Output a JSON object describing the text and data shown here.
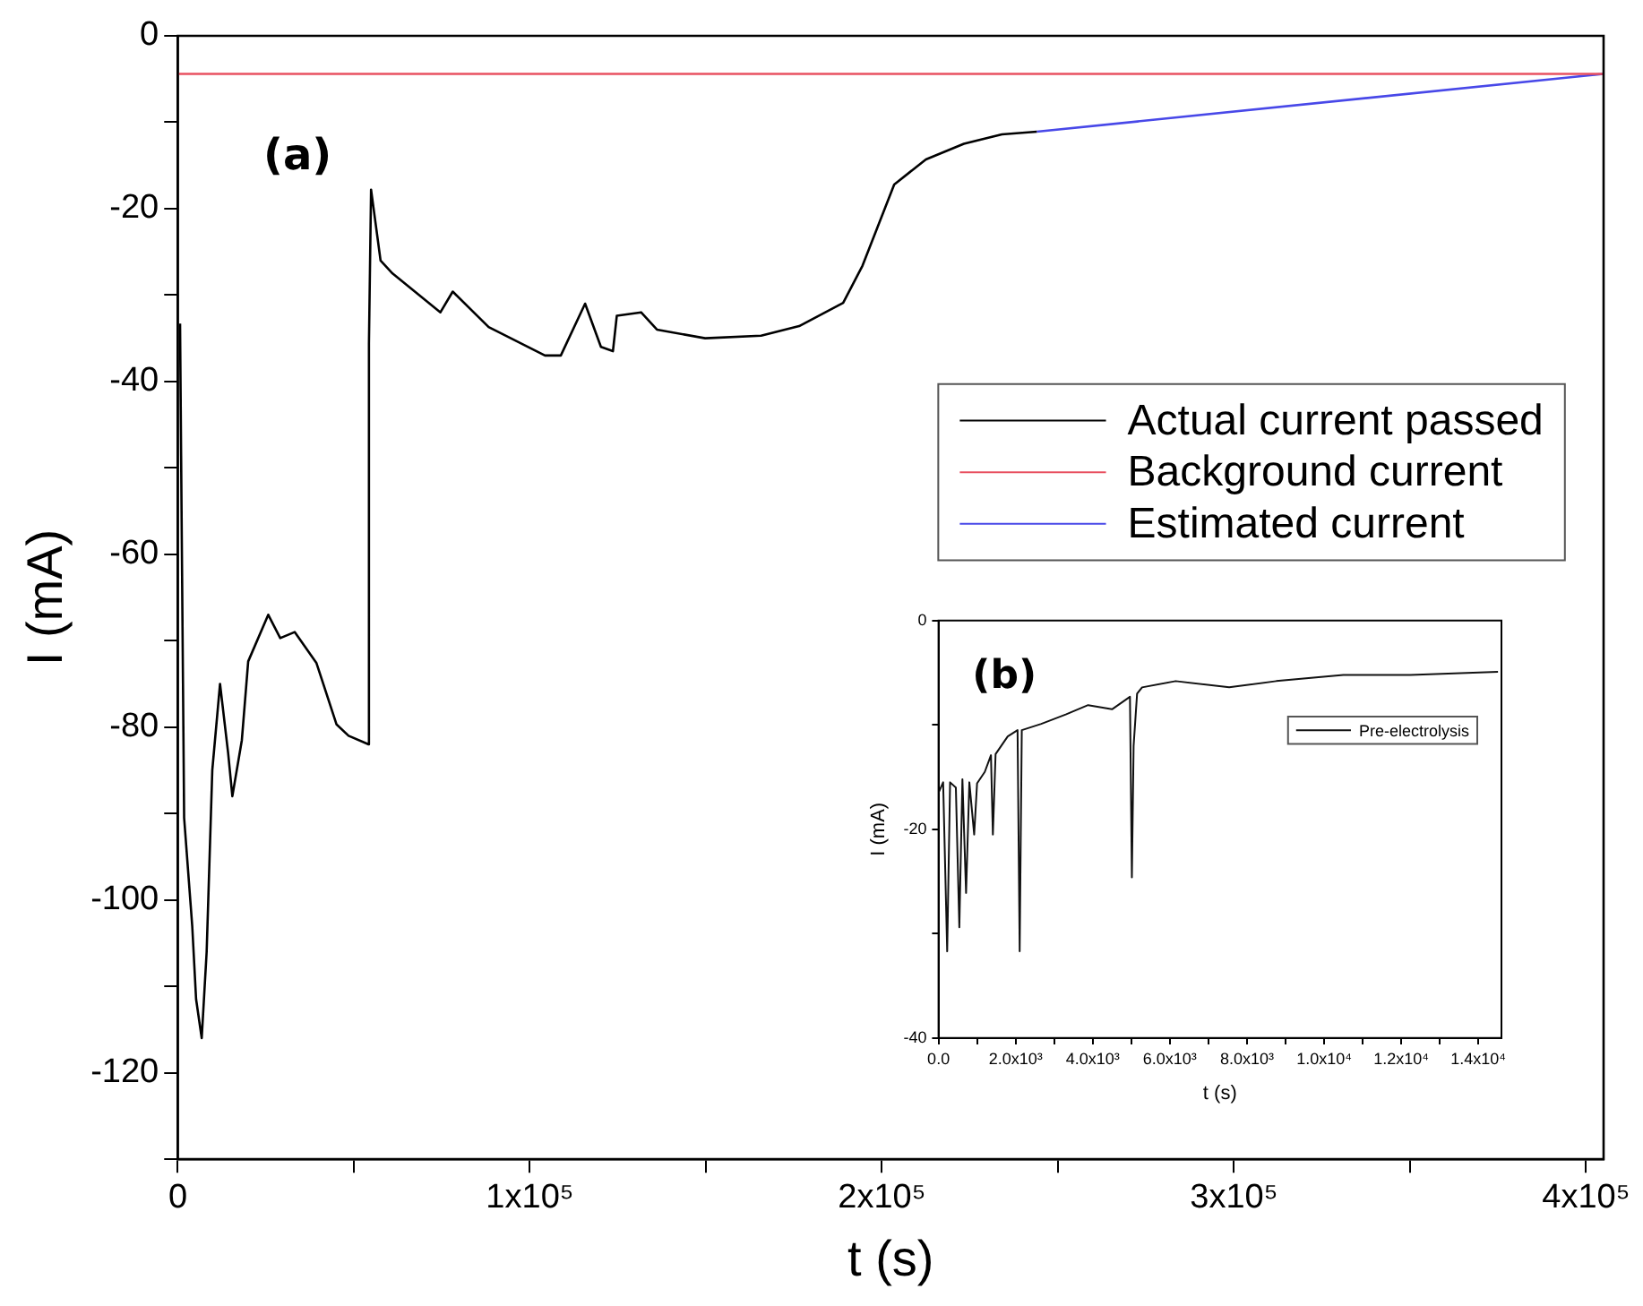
{
  "chart_data": [
    {
      "type": "line",
      "xlabel": "t (s)",
      "ylabel": "I (mA)",
      "annotations": [
        "(a)"
      ],
      "xlim": [
        0,
        405000
      ],
      "xticks": [
        0,
        {
          "value": 50000,
          "label": null
        },
        {
          "value": 100000,
          "label": "1x10⁵"
        },
        {
          "value": 150000,
          "label": null
        },
        {
          "value": 200000,
          "label": "2x10⁵"
        },
        {
          "value": 250000,
          "label": null
        },
        {
          "value": 300000,
          "label": "3x10⁵"
        },
        {
          "value": 350000,
          "label": null
        },
        {
          "value": 400000,
          "label": "4x10⁵"
        }
      ],
      "ylim": [
        -130,
        0
      ],
      "yticks": [
        0,
        {
          "value": -10,
          "label": null
        },
        -20,
        {
          "value": -30,
          "label": null
        },
        -40,
        {
          "value": -50,
          "label": null
        },
        -60,
        {
          "value": -70,
          "label": null
        },
        -80,
        {
          "value": -90,
          "label": null
        },
        -100,
        {
          "value": -110,
          "label": null
        },
        -120,
        {
          "value": -130,
          "label": null
        }
      ],
      "grid": false,
      "legend": "right",
      "marker": "none",
      "line_style": "solid",
      "series": [
        {
          "name": "Actual current passed",
          "color": "#000000",
          "x": [
            650,
            1130,
            1800,
            4100,
            5200,
            6800,
            8200,
            9800,
            12000,
            14300,
            15500,
            18200,
            20000,
            25700,
            29100,
            33200,
            39400,
            45100,
            48500,
            54200,
            54300,
            54900,
            57600,
            61000,
            74600,
            78100,
            88300,
            104300,
            108800,
            115700,
            120200,
            123600,
            124700,
            131600,
            136100,
            149800,
            165700,
            176500,
            189000,
            194500,
            203500,
            212500,
            223300,
            234100,
            244000
          ],
          "values": [
            -33.3,
            -57.9,
            -90.5,
            -103,
            -111.5,
            -116,
            -106,
            -85,
            -75,
            -83,
            -88,
            -81.5,
            -72.4,
            -67,
            -69.7,
            -69,
            -72.6,
            -79.7,
            -81,
            -82,
            -35.6,
            -17.8,
            -26,
            -27.5,
            -32,
            -29.6,
            -33.7,
            -37,
            -37,
            -31,
            -36,
            -36.5,
            -32.4,
            -32,
            -34,
            -35,
            -34.7,
            -33.6,
            -30.9,
            -26.6,
            -17.2,
            -14.3,
            -12.5,
            -11.4,
            -11.1
          ]
        },
        {
          "name": "Background current",
          "color": "#e85060",
          "x": [
            0,
            405000
          ],
          "values": [
            -4.4,
            -4.4
          ]
        },
        {
          "name": "Estimated current",
          "color": "#4848e8",
          "x": [
            244000,
            405000
          ],
          "values": [
            -11.1,
            -4.4
          ]
        }
      ]
    },
    {
      "type": "line",
      "xlabel": "t (s)",
      "ylabel": "I (mA)",
      "annotations": [
        "(b)"
      ],
      "xlim": [
        0,
        14600
      ],
      "xticks": [
        {
          "value": 0,
          "label": "0.0"
        },
        {
          "value": 1000,
          "label": null
        },
        {
          "value": 2000,
          "label": "2.0x10³"
        },
        {
          "value": 3000,
          "label": null
        },
        {
          "value": 4000,
          "label": "4.0x10³"
        },
        {
          "value": 5000,
          "label": null
        },
        {
          "value": 6000,
          "label": "6.0x10³"
        },
        {
          "value": 7000,
          "label": null
        },
        {
          "value": 8000,
          "label": "8.0x10³"
        },
        {
          "value": 9000,
          "label": null
        },
        {
          "value": 10000,
          "label": "1.0x10⁴"
        },
        {
          "value": 11000,
          "label": null
        },
        {
          "value": 12000,
          "label": "1.2x10⁴"
        },
        {
          "value": 13000,
          "label": null
        },
        {
          "value": 14000,
          "label": "1.4x10⁴"
        }
      ],
      "ylim": [
        -40,
        0
      ],
      "yticks": [
        0,
        {
          "value": -10,
          "label": null
        },
        -20,
        {
          "value": -30,
          "label": null
        },
        -40
      ],
      "grid": false,
      "legend": "top right",
      "marker": "none",
      "line_style": "solid",
      "series": [
        {
          "name": "Pre-electrolysis",
          "color": "#111111",
          "x": [
            0,
            120,
            225,
            300,
            450,
            540,
            620,
            715,
            800,
            925,
            1000,
            1200,
            1360,
            1410,
            1480,
            1795,
            2050,
            2105,
            2160,
            2665,
            3300,
            3880,
            4500,
            4965,
            5015,
            5060,
            5150,
            5280,
            6150,
            7540,
            8760,
            10500,
            12240,
            14510
          ],
          "values": [
            -16.5,
            -15.5,
            -31.7,
            -15.5,
            -16,
            -29.4,
            -15.2,
            -26.1,
            -15.5,
            -20.5,
            -15.6,
            -14.5,
            -12.9,
            -20.5,
            -12.8,
            -11.1,
            -10.5,
            -31.7,
            -10.5,
            -9.9,
            -9,
            -8.1,
            -8.5,
            -7.3,
            -24.6,
            -12,
            -7,
            -6.4,
            -5.8,
            -6.4,
            -5.8,
            -5.2,
            -5.2,
            -4.9
          ]
        }
      ]
    }
  ]
}
